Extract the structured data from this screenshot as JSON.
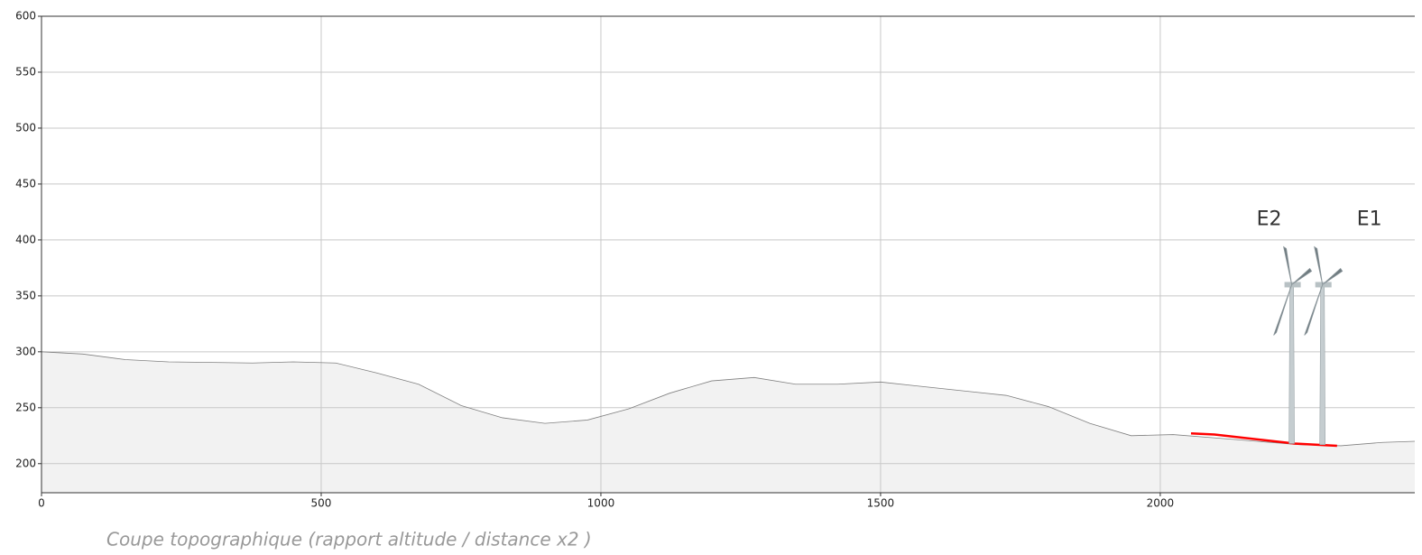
{
  "chart_data": {
    "type": "area",
    "caption": "Coupe topographique (rapport altitude / distance x2 )",
    "xlim": [
      0,
      2455
    ],
    "ylim": [
      174,
      600
    ],
    "xticks": [
      0,
      500,
      1000,
      1500,
      2000
    ],
    "yticks": [
      200,
      250,
      300,
      350,
      400,
      450,
      500,
      550,
      600
    ],
    "grid": true,
    "series": [
      {
        "color": "#808080",
        "x": [
          0,
          74,
          150,
          227,
          377,
          450,
          526,
          600,
          674,
          750,
          824,
          900,
          976,
          1050,
          1123,
          1198,
          1274,
          1348,
          1423,
          1500,
          1574,
          1650,
          1725,
          1800,
          1874,
          1948,
          2023,
          2098,
          2173,
          2248,
          2323,
          2397,
          2455
        ],
        "values": [
          300,
          298,
          293,
          291,
          290,
          291,
          290,
          281,
          271,
          252,
          241,
          236,
          239,
          249,
          263,
          274,
          277,
          271,
          271,
          273,
          269,
          265,
          261,
          251,
          236,
          225,
          226,
          223,
          220,
          217,
          216,
          219,
          220
        ]
      },
      {
        "color": "#ff0000",
        "x": [
          2055,
          2097,
          2240,
          2316
        ],
        "values": [
          227,
          226,
          218,
          216
        ]
      }
    ],
    "turbines": [
      {
        "name": "E2",
        "x": 2235,
        "base": 218,
        "hub": 360
      },
      {
        "name": "E1",
        "x": 2290,
        "base": 217,
        "hub": 360
      }
    ]
  }
}
